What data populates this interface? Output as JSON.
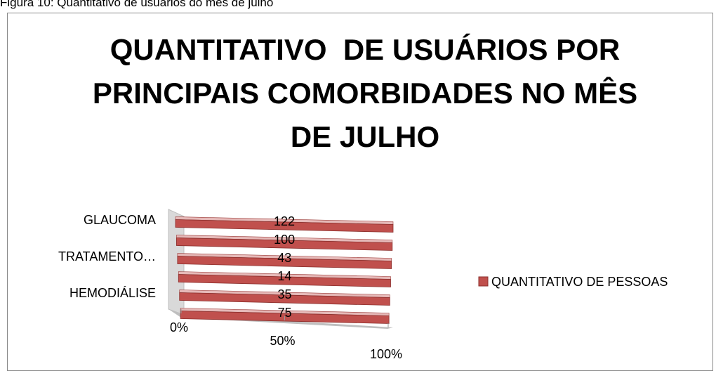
{
  "caption": "Figura 10: Quantitativo de usuários do mês de julho",
  "chart_data": {
    "type": "bar3d_100",
    "title": "QUANTITATIVO  DE USUÁRIOS POR PRINCIPAIS COMORBIDADES NO MÊS DE JULHO",
    "categories": [
      null,
      "HEMODIÁLISE",
      null,
      "TRATAMENTO…",
      null,
      "GLAUCOMA"
    ],
    "series": [
      {
        "name": "QUANTITATIVO DE PESSOAS",
        "color": "#c0504d",
        "values": [
          75,
          35,
          14,
          43,
          100,
          122
        ]
      }
    ],
    "xlim": [
      0,
      100
    ],
    "xticks": [
      {
        "value": 0,
        "label": "0%"
      },
      {
        "value": 50,
        "label": "50%"
      },
      {
        "value": 100,
        "label": "100%"
      }
    ],
    "legend": "right"
  }
}
